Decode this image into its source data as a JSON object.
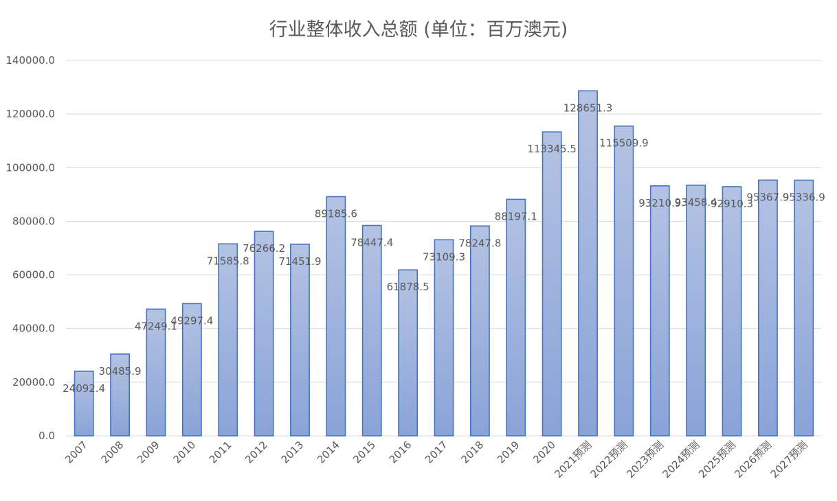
{
  "chart_data": {
    "type": "bar",
    "title": "行业整体收入总额 (单位：百万澳元)",
    "xlabel": "",
    "ylabel": "",
    "ylim": [
      0,
      140000
    ],
    "y_ticks": [
      "0.0",
      "20000.0",
      "40000.0",
      "60000.0",
      "80000.0",
      "100000.0",
      "120000.0",
      "140000.0"
    ],
    "grid": true,
    "legend": "none",
    "categories": [
      "2007",
      "2008",
      "2009",
      "2010",
      "2011",
      "2012",
      "2013",
      "2014",
      "2015",
      "2016",
      "2017",
      "2018",
      "2019",
      "2020",
      "2021预测",
      "2022预测",
      "2023预测",
      "2024预测",
      "2025预测",
      "2026预测",
      "2027预测"
    ],
    "values": [
      24092.4,
      30485.9,
      47249.1,
      49297.4,
      71585.8,
      76266.2,
      71451.9,
      89185.6,
      78447.4,
      61878.5,
      73109.3,
      78247.8,
      88197.1,
      113345.5,
      128651.3,
      115509.9,
      93210.9,
      93458.4,
      92910.3,
      95367.9,
      95336.9
    ],
    "data_labels": [
      "24092.4",
      "30485.9",
      "47249.1",
      "49297.4",
      "71585.8",
      "76266.2",
      "71451.9",
      "89185.6",
      "78447.4",
      "61878.5",
      "73109.3",
      "78247.8",
      "88197.1",
      "113345.5",
      "128651.3",
      "115509.9",
      "93210.9",
      "93458.4",
      "92910.3",
      "95367.9",
      "95336.9"
    ],
    "colors": {
      "bar_top": "#b4c3e3",
      "bar_bottom": "#8aa3d8",
      "bar_border": "#4472c4",
      "grid": "#d9d9d9",
      "text": "#595959"
    }
  }
}
